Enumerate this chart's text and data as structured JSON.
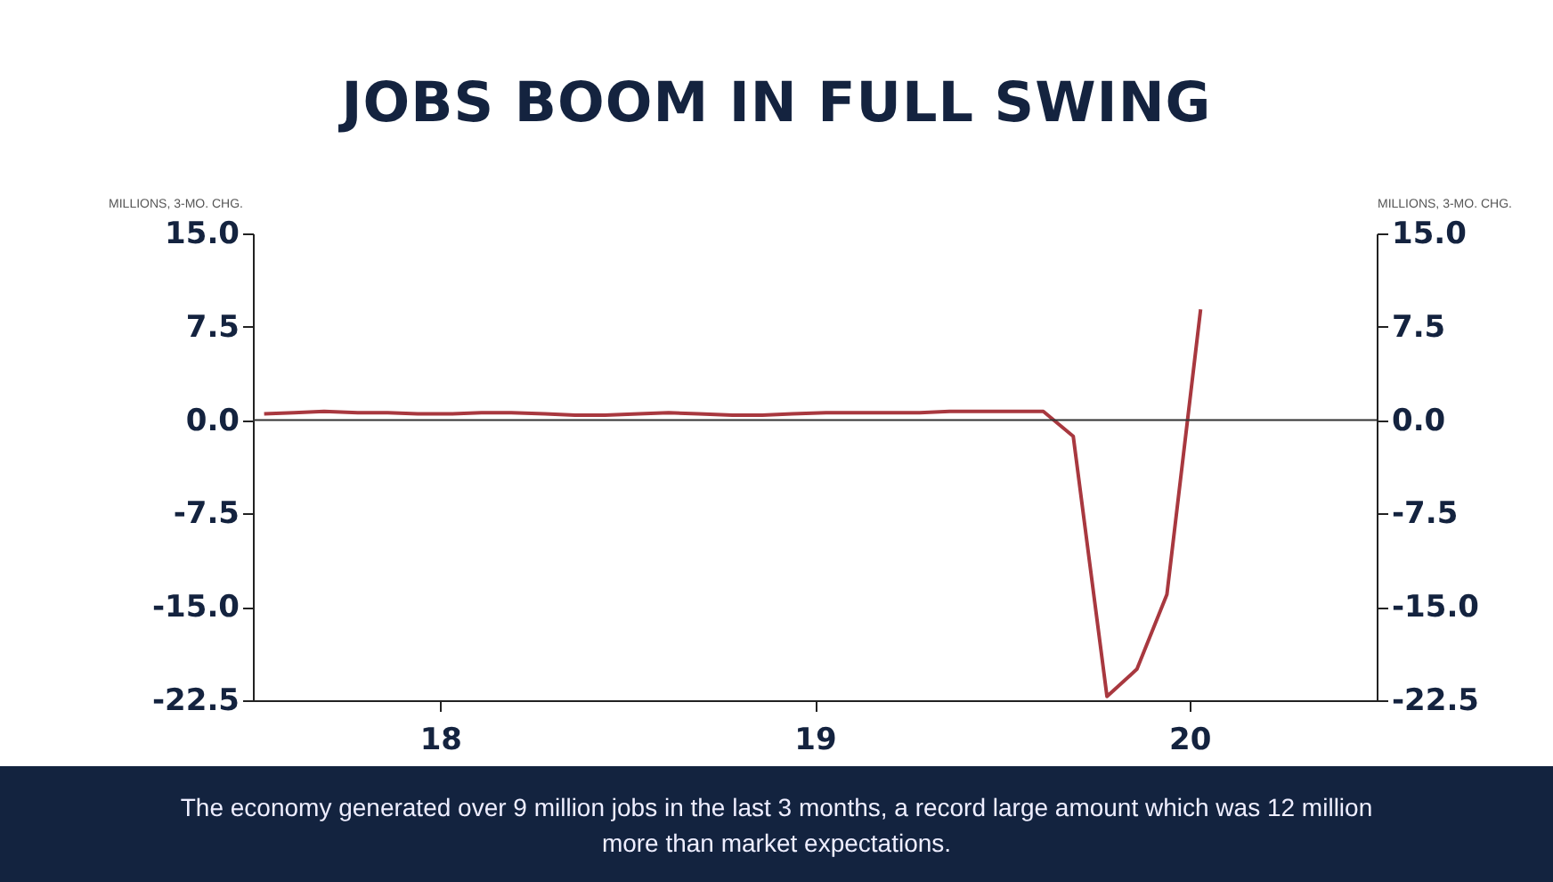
{
  "chart_data": {
    "type": "line",
    "title": "JOBS BOOM IN FULL SWING",
    "ylabel": "MILLIONS, 3-MO. CHG.",
    "y2label": "MILLIONS, 3-MO. CHG.",
    "annotations": [
      "The economy generated over 9 million jobs in the last 3 months, a record large amount which was 12 million more than market expectations."
    ],
    "x": [
      17.53,
      17.61,
      17.69,
      17.78,
      17.86,
      17.94,
      18.03,
      18.11,
      18.19,
      18.28,
      18.36,
      18.44,
      18.53,
      18.61,
      18.69,
      18.78,
      18.86,
      18.94,
      19.03,
      19.11,
      19.19,
      19.28,
      19.36,
      19.44,
      19.53,
      19.61,
      19.69,
      19.78,
      19.86,
      19.94,
      20.03
    ],
    "series": [
      {
        "color": "#a8383f",
        "values": [
          0.5,
          0.6,
          0.7,
          0.6,
          0.6,
          0.5,
          0.5,
          0.6,
          0.6,
          0.5,
          0.4,
          0.4,
          0.5,
          0.6,
          0.5,
          0.4,
          0.4,
          0.5,
          0.6,
          0.6,
          0.6,
          0.6,
          0.7,
          0.7,
          0.7,
          0.7,
          -1.3,
          -22.2,
          -20,
          -14,
          8.9
        ]
      }
    ],
    "xlim": [
      17.5,
      20.5
    ],
    "xticks": [
      18,
      19,
      20
    ],
    "ylim": [
      -22.5,
      15
    ],
    "yticks": [
      {
        "value": -22.5,
        "label": "-22.5"
      },
      {
        "value": -15,
        "label": "-15.0"
      },
      {
        "value": -7.5,
        "label": "-7.5"
      },
      {
        "value": 0,
        "label": "0.0"
      },
      {
        "value": 7.5,
        "label": "7.5"
      },
      {
        "value": 15,
        "label": "15.0"
      }
    ],
    "y2lim": [
      -22.5,
      15
    ],
    "y2ticks": [
      {
        "value": -22.5,
        "label": "-22.5"
      },
      {
        "value": -15,
        "label": "-15.0"
      },
      {
        "value": -7.5,
        "label": "-7.5"
      },
      {
        "value": 0,
        "label": "0.0"
      },
      {
        "value": 7.5,
        "label": "7.5"
      },
      {
        "value": 15,
        "label": "15.0"
      }
    ],
    "ref_lines": [
      {
        "axis": "y2",
        "value": 0,
        "color": "#333333"
      }
    ],
    "grid": false,
    "line_style": "solid"
  }
}
